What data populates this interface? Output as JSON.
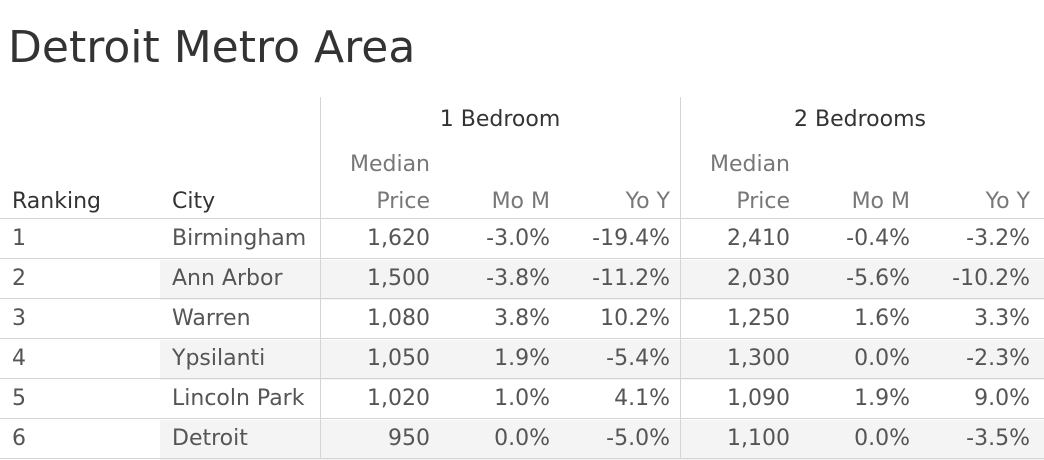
{
  "title": "Detroit Metro Area",
  "table": {
    "groups": [
      "1 Bedroom",
      "2 Bedrooms"
    ],
    "ranking_header": "Ranking",
    "city_header": "City",
    "column_headers": [
      [
        "Median",
        "Price"
      ],
      [
        "Mo M"
      ],
      [
        "Yo Y"
      ]
    ],
    "rows": [
      [
        "1",
        "Birmingham",
        "1,620",
        "-3.0%",
        "-19.4%",
        "2,410",
        "-0.4%",
        "-3.2%"
      ],
      [
        "2",
        "Ann Arbor",
        "1,500",
        "-3.8%",
        "-11.2%",
        "2,030",
        "-5.6%",
        "-10.2%"
      ],
      [
        "3",
        "Warren",
        "1,080",
        "3.8%",
        "10.2%",
        "1,250",
        "1.6%",
        "3.3%"
      ],
      [
        "4",
        "Ypsilanti",
        "1,050",
        "1.9%",
        "-5.4%",
        "1,300",
        "0.0%",
        "-2.3%"
      ],
      [
        "5",
        "Lincoln Park",
        "1,020",
        "1.0%",
        "4.1%",
        "1,090",
        "1.9%",
        "9.0%"
      ],
      [
        "6",
        "Detroit",
        "950",
        "0.0%",
        "-5.0%",
        "1,100",
        "0.0%",
        "-3.5%"
      ]
    ]
  }
}
